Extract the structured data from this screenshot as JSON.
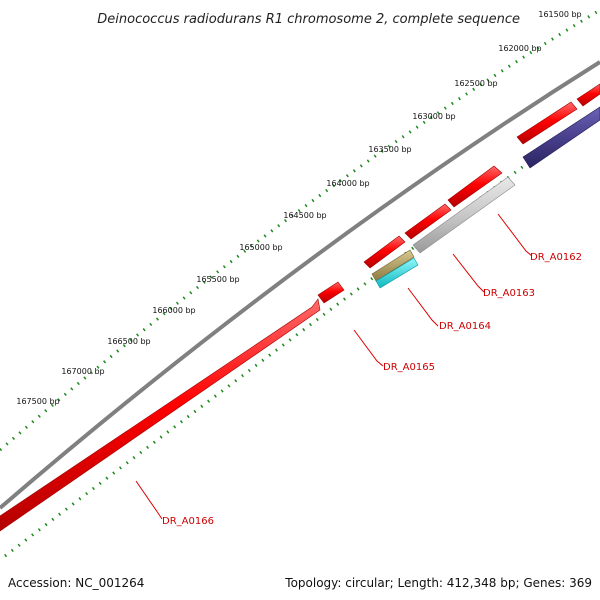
{
  "title": "Deinococcus radiodurans R1 chromosome 2, complete sequence",
  "footer": {
    "accession": "Accession: NC_001264",
    "summary": "Topology: circular; Length: 412,348 bp; Genes: 369"
  },
  "colors": {
    "backbone": "#808080",
    "ruler": "#1e8a1e",
    "gene_red": "#ff0000",
    "gene_gray": "#c8c8c8",
    "gene_navy": "#48408c",
    "gene_khaki": "#b4a064",
    "gene_cyan": "#19e6ee",
    "label_text": "#cc0000",
    "leader_line": "#dd0000"
  },
  "ruler_labels": [
    "161500 bp",
    "162000 bp",
    "162500 bp",
    "163000 bp",
    "163500 bp",
    "164000 bp",
    "164500 bp",
    "165000 bp",
    "165500 bp",
    "166000 bp",
    "166500 bp",
    "167000 bp",
    "167500 bp"
  ],
  "gene_labels": [
    "DR_A0162",
    "DR_A0163",
    "DR_A0164",
    "DR_A0165",
    "DR_A0166"
  ]
}
